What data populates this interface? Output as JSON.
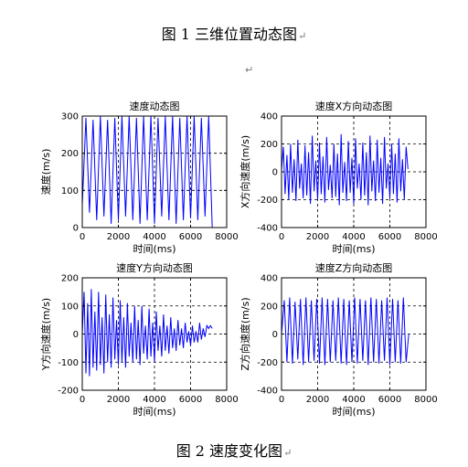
{
  "captions": {
    "figure1": "图 1  三维位置动态图",
    "figure2": "图 2  速度变化图",
    "return_mark": "↵"
  },
  "colors": {
    "line": "#0000ff",
    "axes": "#000000",
    "grid": "#000000",
    "background": "#ffffff"
  },
  "chart_data": [
    {
      "type": "line",
      "title": "速度动态图",
      "xlabel": "时间(ms)",
      "ylabel": "速度(m/s)",
      "xlim": [
        0,
        8000
      ],
      "ylim": [
        0,
        300
      ],
      "xticks": [
        0,
        2000,
        4000,
        6000,
        8000
      ],
      "yticks": [
        0,
        100,
        200,
        300
      ],
      "grid": true,
      "series": [
        {
          "x": [
            0,
            200,
            400,
            600,
            800,
            1000,
            1200,
            1400,
            1600,
            1800,
            2000,
            2200,
            2400,
            2600,
            2800,
            3000,
            3200,
            3400,
            3600,
            3800,
            4000,
            4200,
            4400,
            4600,
            4800,
            5000,
            5200,
            5400,
            5600,
            5800,
            6000,
            6200,
            6400,
            6600,
            6800,
            7000,
            7200
          ],
          "y": [
            60,
            295,
            40,
            290,
            20,
            300,
            30,
            290,
            10,
            295,
            20,
            300,
            30,
            300,
            20,
            295,
            10,
            300,
            20,
            300,
            10,
            295,
            30,
            300,
            20,
            300,
            10,
            295,
            20,
            300,
            25,
            300,
            20,
            295,
            30,
            300,
            0
          ]
        }
      ]
    },
    {
      "type": "line",
      "title": "速度X方向动态图",
      "xlabel": "时间(ms)",
      "ylabel": "X方向速度(m/s)",
      "xlim": [
        0,
        8000
      ],
      "ylim": [
        -400,
        400
      ],
      "xticks": [
        0,
        2000,
        4000,
        6000,
        8000
      ],
      "yticks": [
        -400,
        -200,
        0,
        200,
        400
      ],
      "grid": true,
      "series": [
        {
          "x": [
            0,
            100,
            200,
            300,
            400,
            500,
            600,
            700,
            800,
            900,
            1000,
            1100,
            1200,
            1300,
            1400,
            1500,
            1600,
            1700,
            1800,
            1900,
            2000,
            2100,
            2200,
            2300,
            2400,
            2500,
            2600,
            2700,
            2800,
            2900,
            3000,
            3100,
            3200,
            3300,
            3400,
            3500,
            3600,
            3700,
            3800,
            3900,
            4000,
            4100,
            4200,
            4300,
            4400,
            4500,
            4600,
            4700,
            4800,
            4900,
            5000,
            5100,
            5200,
            5300,
            5400,
            5500,
            5600,
            5700,
            5800,
            5900,
            6000,
            6100,
            6200,
            6300,
            6400,
            6500,
            6600,
            6700,
            6800,
            6900,
            7000
          ],
          "y": [
            10,
            180,
            -160,
            120,
            -200,
            200,
            -150,
            90,
            -210,
            230,
            -120,
            60,
            -190,
            190,
            -170,
            140,
            -230,
            260,
            -140,
            80,
            -200,
            210,
            -160,
            110,
            -220,
            250,
            -130,
            50,
            -190,
            200,
            -180,
            130,
            -240,
            270,
            -150,
            70,
            -210,
            220,
            -150,
            100,
            -230,
            240,
            -120,
            60,
            -200,
            210,
            -170,
            140,
            -240,
            260,
            -140,
            80,
            -210,
            230,
            -150,
            100,
            -230,
            250,
            -120,
            60,
            -190,
            200,
            -160,
            130,
            -220,
            240,
            -140,
            90,
            -200,
            180,
            20
          ]
        }
      ]
    },
    {
      "type": "line",
      "title": "速度Y方向动态图",
      "xlabel": "时间(ms)",
      "ylabel": "Y方向速度(m/s)",
      "xlim": [
        0,
        8000
      ],
      "ylim": [
        -200,
        200
      ],
      "xticks": [
        0,
        2000,
        4000,
        6000,
        8000
      ],
      "yticks": [
        -200,
        -100,
        0,
        100,
        200
      ],
      "grid": true,
      "series": [
        {
          "x": [
            0,
            100,
            200,
            300,
            400,
            500,
            600,
            700,
            800,
            900,
            1000,
            1100,
            1200,
            1300,
            1400,
            1500,
            1600,
            1700,
            1800,
            1900,
            2000,
            2100,
            2200,
            2300,
            2400,
            2500,
            2600,
            2700,
            2800,
            2900,
            3000,
            3100,
            3200,
            3300,
            3400,
            3500,
            3600,
            3700,
            3800,
            3900,
            4000,
            4100,
            4200,
            4300,
            4400,
            4500,
            4600,
            4700,
            4800,
            4900,
            5000,
            5100,
            5200,
            5300,
            5400,
            5500,
            5600,
            5700,
            5800,
            5900,
            6000,
            6100,
            6200,
            6300,
            6400,
            6500,
            6600,
            6700,
            6800,
            6900,
            7000,
            7100,
            7200
          ],
          "y": [
            0,
            150,
            -140,
            110,
            -150,
            160,
            -120,
            80,
            -130,
            150,
            -110,
            60,
            -140,
            140,
            -100,
            70,
            -120,
            130,
            -90,
            50,
            -110,
            120,
            -100,
            60,
            -120,
            110,
            -80,
            40,
            -100,
            100,
            -90,
            50,
            -110,
            100,
            -70,
            30,
            -90,
            90,
            -80,
            40,
            -100,
            80,
            -60,
            30,
            -80,
            70,
            -60,
            30,
            -70,
            60,
            -50,
            20,
            -60,
            50,
            -40,
            20,
            -50,
            40,
            -30,
            10,
            -40,
            30,
            -30,
            10,
            -30,
            40,
            -20,
            20,
            -10,
            30,
            20,
            30,
            20
          ]
        }
      ]
    },
    {
      "type": "line",
      "title": "速度Z方向动态图",
      "xlabel": "时间(ms)",
      "ylabel": "Z方向速度(m/s)",
      "xlim": [
        0,
        8000
      ],
      "ylim": [
        -400,
        400
      ],
      "xticks": [
        0,
        2000,
        4000,
        6000,
        8000
      ],
      "yticks": [
        -400,
        -200,
        0,
        200,
        400
      ],
      "grid": true,
      "series": [
        {
          "x": [
            0,
            150,
            300,
            450,
            600,
            750,
            900,
            1050,
            1200,
            1350,
            1500,
            1650,
            1800,
            1950,
            2100,
            2250,
            2400,
            2550,
            2700,
            2850,
            3000,
            3150,
            3300,
            3450,
            3600,
            3750,
            3900,
            4050,
            4200,
            4350,
            4500,
            4650,
            4800,
            4950,
            5100,
            5250,
            5400,
            5550,
            5700,
            5850,
            6000,
            6150,
            6300,
            6450,
            6600,
            6750,
            6900,
            7050
          ],
          "y": [
            0,
            240,
            -200,
            260,
            -210,
            230,
            -180,
            250,
            -220,
            260,
            -200,
            240,
            -190,
            250,
            -210,
            260,
            -220,
            250,
            -200,
            240,
            -190,
            260,
            -210,
            250,
            -220,
            240,
            -200,
            260,
            -210,
            250,
            -190,
            240,
            -220,
            260,
            -200,
            250,
            -210,
            240,
            -190,
            260,
            -220,
            250,
            -200,
            240,
            -210,
            260,
            -200,
            0
          ]
        }
      ]
    }
  ]
}
